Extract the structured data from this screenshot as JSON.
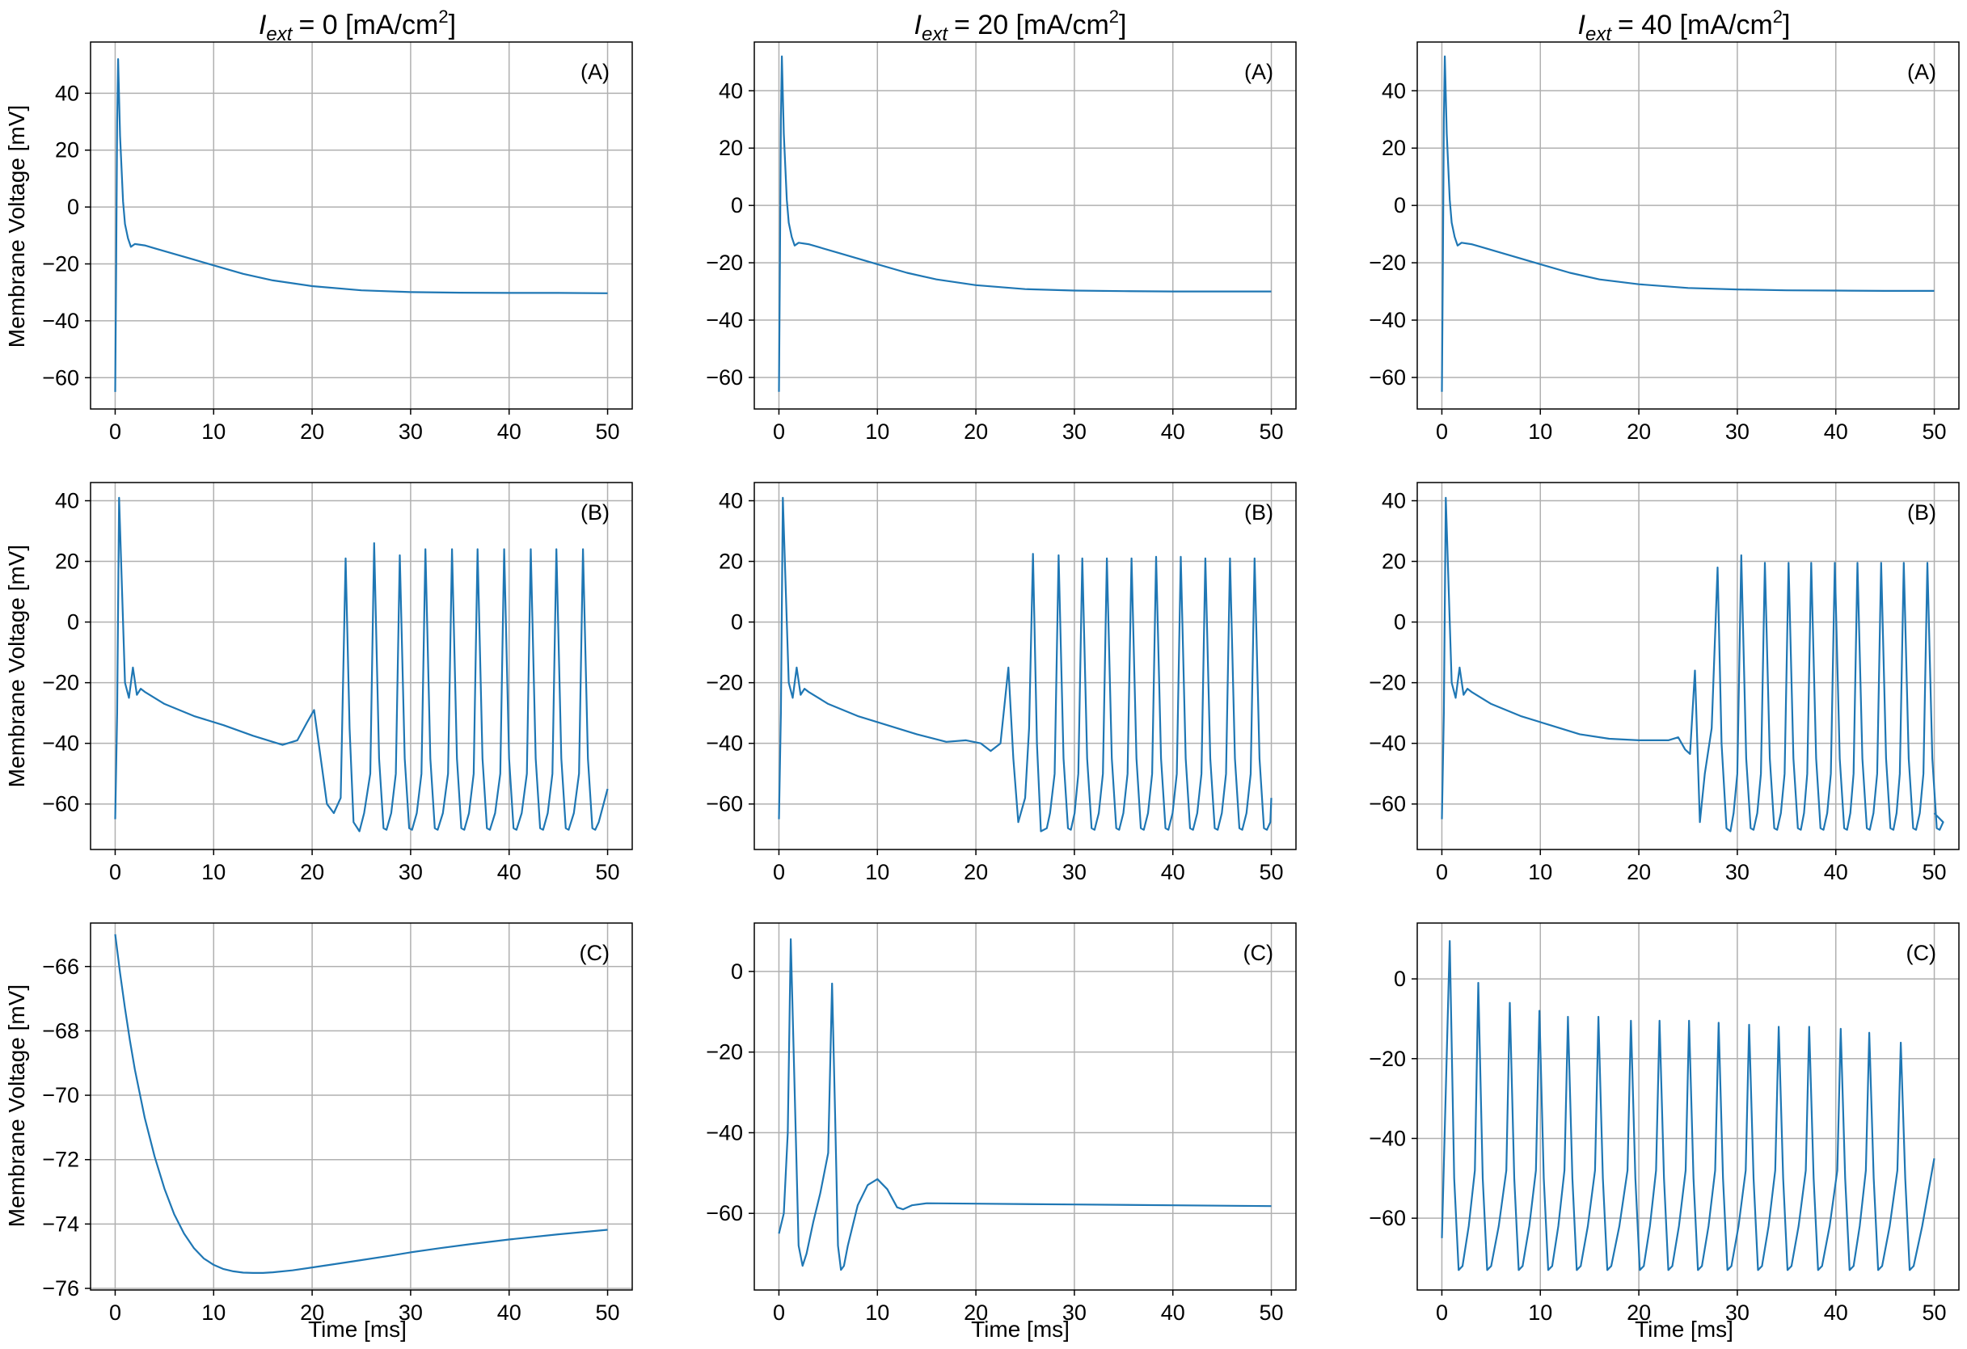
{
  "figure": {
    "columns": [
      {
        "title_symbol": "I",
        "title_sub": "ext",
        "title_value": "= 0 [mA/cm",
        "title_sup": "2",
        "title_tail": "]"
      },
      {
        "title_symbol": "I",
        "title_sub": "ext",
        "title_value": "= 20 [mA/cm",
        "title_sup": "2",
        "title_tail": "]"
      },
      {
        "title_symbol": "I",
        "title_sub": "ext",
        "title_value": "= 40 [mA/cm",
        "title_sup": "2",
        "title_tail": "]"
      }
    ],
    "ylabel": "Membrane Voltage [mV]",
    "xlabel": "Time [ms]",
    "colors": {
      "line": "#1f77b4",
      "grid": "#b0b0b0",
      "axes": "#000000"
    }
  },
  "chart_data": [
    {
      "type": "line",
      "row": 0,
      "col": 0,
      "tag": "(A)",
      "xlim": [
        -2.5,
        52.5
      ],
      "ylim": [
        -71,
        58
      ],
      "xticks": [
        0,
        10,
        20,
        30,
        40,
        50
      ],
      "yticks": [
        -60,
        -40,
        -20,
        0,
        20,
        40
      ],
      "x": [
        0,
        0.1,
        0.2,
        0.3,
        0.5,
        0.8,
        1,
        1.3,
        1.6,
        2,
        3,
        4,
        6,
        8,
        10,
        13,
        16,
        20,
        25,
        30,
        35,
        40,
        45,
        50
      ],
      "y": [
        -65,
        -20,
        30,
        52,
        25,
        2,
        -6,
        -11,
        -14,
        -13,
        -13.5,
        -14.5,
        -16.5,
        -18.5,
        -20.5,
        -23.5,
        -25.8,
        -27.8,
        -29.3,
        -29.9,
        -30.1,
        -30.2,
        -30.2,
        -30.3
      ]
    },
    {
      "type": "line",
      "row": 0,
      "col": 1,
      "tag": "(A)",
      "xlim": [
        -2.5,
        52.5
      ],
      "ylim": [
        -71,
        57
      ],
      "xticks": [
        0,
        10,
        20,
        30,
        40,
        50
      ],
      "yticks": [
        -60,
        -40,
        -20,
        0,
        20,
        40
      ],
      "x": [
        0,
        0.1,
        0.2,
        0.3,
        0.5,
        0.8,
        1,
        1.3,
        1.6,
        2,
        3,
        4,
        6,
        8,
        10,
        13,
        16,
        20,
        25,
        30,
        35,
        40,
        45,
        50
      ],
      "y": [
        -65,
        -20,
        30,
        52,
        25,
        2,
        -6,
        -11,
        -14,
        -13,
        -13.5,
        -14.5,
        -16.5,
        -18.5,
        -20.5,
        -23.5,
        -25.8,
        -27.8,
        -29.2,
        -29.7,
        -29.9,
        -30,
        -30,
        -30
      ]
    },
    {
      "type": "line",
      "row": 0,
      "col": 2,
      "tag": "(A)",
      "xlim": [
        -2.5,
        52.5
      ],
      "ylim": [
        -71,
        57
      ],
      "xticks": [
        0,
        10,
        20,
        30,
        40,
        50
      ],
      "yticks": [
        -60,
        -40,
        -20,
        0,
        20,
        40
      ],
      "x": [
        0,
        0.1,
        0.2,
        0.3,
        0.5,
        0.8,
        1,
        1.3,
        1.6,
        2,
        3,
        4,
        6,
        8,
        10,
        13,
        16,
        20,
        25,
        30,
        35,
        40,
        45,
        50
      ],
      "y": [
        -65,
        -20,
        30,
        52,
        25,
        2,
        -6,
        -11,
        -14,
        -13,
        -13.5,
        -14.5,
        -16.5,
        -18.5,
        -20.5,
        -23.5,
        -25.8,
        -27.5,
        -28.8,
        -29.3,
        -29.6,
        -29.7,
        -29.8,
        -29.8
      ]
    },
    {
      "type": "line",
      "row": 1,
      "col": 0,
      "tag": "(B)",
      "xlim": [
        -2.5,
        52.5
      ],
      "ylim": [
        -75,
        46
      ],
      "xticks": [
        0,
        10,
        20,
        30,
        40,
        50
      ],
      "yticks": [
        -60,
        -40,
        -20,
        0,
        20,
        40
      ],
      "spike_times": [
        23.4,
        26.3,
        28.9,
        31.5,
        34.2,
        36.8,
        39.5,
        42.2,
        44.8,
        47.5
      ],
      "spike_peaks": [
        21,
        26,
        22,
        24,
        24,
        24,
        24,
        24,
        24,
        24
      ],
      "x": [
        0,
        0.2,
        0.4,
        0.7,
        1,
        1.4,
        1.8,
        2.2,
        2.6,
        3,
        5,
        8,
        11,
        14,
        17,
        18.5,
        19.5,
        20.2,
        21,
        21.5,
        22.2,
        22.9,
        23.4,
        23.8,
        24.2,
        24.8,
        26.3,
        28.9,
        31.5,
        34.2,
        36.8,
        39.5,
        42.2,
        44.8,
        47.5,
        50
      ],
      "y": [
        -65,
        -30,
        41,
        10,
        -20,
        -25,
        -15,
        -24,
        -22,
        -23,
        -27,
        -31,
        -34,
        -37.5,
        -40.5,
        -39,
        -33,
        -29,
        -48,
        -60,
        -63,
        -58,
        21,
        -35,
        -66,
        -69,
        -71,
        -70,
        -70,
        -70,
        -70,
        -70,
        -70,
        -70,
        -70,
        -55
      ]
    },
    {
      "type": "line",
      "row": 1,
      "col": 1,
      "tag": "(B)",
      "xlim": [
        -2.5,
        52.5
      ],
      "ylim": [
        -75,
        46
      ],
      "xticks": [
        0,
        10,
        20,
        30,
        40,
        50
      ],
      "yticks": [
        -60,
        -40,
        -20,
        0,
        20,
        40
      ],
      "spike_times": [
        25.8,
        28.4,
        30.8,
        33.3,
        35.8,
        38.3,
        40.8,
        43.3,
        45.8,
        48.3
      ],
      "spike_peaks": [
        22.5,
        22,
        21,
        21,
        21,
        21.5,
        21.5,
        21,
        21,
        21
      ],
      "x": [
        0,
        0.2,
        0.4,
        0.7,
        1,
        1.4,
        1.8,
        2.2,
        2.6,
        3,
        5,
        8,
        11,
        14,
        17,
        19,
        20.5,
        21.5,
        22.5,
        23.3,
        23.8,
        24.3,
        25,
        25.4,
        25.8,
        26.2,
        26.6,
        27.2,
        28.4,
        30.8,
        33.3,
        35.8,
        38.3,
        40.8,
        43.3,
        45.8,
        48.3,
        50
      ],
      "y": [
        -65,
        -30,
        41,
        10,
        -20,
        -25,
        -15,
        -24,
        -22,
        -23,
        -27,
        -31,
        -34,
        -37,
        -39.5,
        -39,
        -40,
        -42.5,
        -40,
        -15,
        -45,
        -66,
        -58,
        -35,
        22.5,
        -40,
        -69,
        -68,
        -70,
        -70,
        -70,
        -70,
        -70,
        -70,
        -70,
        -70,
        -70,
        -58
      ]
    },
    {
      "type": "line",
      "row": 1,
      "col": 2,
      "tag": "(B)",
      "xlim": [
        -2.5,
        52.5
      ],
      "ylim": [
        -75,
        46
      ],
      "xticks": [
        0,
        10,
        20,
        30,
        40,
        50
      ],
      "yticks": [
        -60,
        -40,
        -20,
        0,
        20,
        40
      ],
      "spike_times": [
        28,
        30.4,
        32.8,
        35.2,
        37.5,
        39.9,
        42.2,
        44.6,
        46.9,
        49.3
      ],
      "spike_peaks": [
        18,
        22,
        19.5,
        19.5,
        19.5,
        19.5,
        19.5,
        19.5,
        19.5,
        19.5
      ],
      "x": [
        0,
        0.2,
        0.4,
        0.7,
        1,
        1.4,
        1.8,
        2.2,
        2.6,
        3,
        5,
        8,
        11,
        14,
        17,
        20,
        23,
        24,
        24.7,
        25.2,
        25.7,
        26.2,
        26.7,
        27.4,
        28,
        28.4,
        28.9,
        29.3,
        30.4,
        32.8,
        35.2,
        37.5,
        39.9,
        42.2,
        44.6,
        46.9,
        49.3,
        50
      ],
      "y": [
        -65,
        -30,
        41,
        10,
        -20,
        -25,
        -15,
        -24,
        -22,
        -23,
        -27,
        -31,
        -34,
        -37,
        -38.5,
        -39,
        -39,
        -38,
        -42,
        -43.5,
        -16,
        -66,
        -50,
        -35,
        18,
        -40,
        -68,
        -69,
        -70,
        -70,
        -70,
        -70,
        -70,
        -70,
        -70,
        -70,
        -70,
        -63
      ]
    },
    {
      "type": "line",
      "row": 2,
      "col": 0,
      "tag": "(C)",
      "xlim": [
        -2.5,
        52.5
      ],
      "ylim": [
        -76.05,
        -64.65
      ],
      "xticks": [
        0,
        10,
        20,
        30,
        40,
        50
      ],
      "yticks": [
        -76,
        -74,
        -72,
        -70,
        -68,
        -66
      ],
      "x": [
        0,
        0.5,
        1,
        1.5,
        2,
        3,
        4,
        5,
        6,
        7,
        8,
        9,
        10,
        11,
        12,
        13,
        14,
        15,
        16,
        18,
        20,
        22,
        25,
        28,
        30,
        33,
        36,
        40,
        45,
        50
      ],
      "y": [
        -65,
        -66.2,
        -67.3,
        -68.3,
        -69.2,
        -70.7,
        -71.9,
        -72.9,
        -73.7,
        -74.3,
        -74.75,
        -75.07,
        -75.27,
        -75.4,
        -75.47,
        -75.51,
        -75.52,
        -75.52,
        -75.5,
        -75.44,
        -75.35,
        -75.26,
        -75.12,
        -74.98,
        -74.88,
        -74.75,
        -74.63,
        -74.48,
        -74.32,
        -74.18
      ]
    },
    {
      "type": "line",
      "row": 2,
      "col": 1,
      "tag": "(C)",
      "xlim": [
        -2.5,
        52.5
      ],
      "ylim": [
        -79,
        12
      ],
      "xticks": [
        0,
        10,
        20,
        30,
        40,
        50
      ],
      "yticks": [
        -60,
        -40,
        -20,
        0
      ],
      "x": [
        0,
        0.5,
        0.9,
        1.2,
        1.5,
        2,
        2.4,
        2.8,
        3.5,
        4.2,
        5,
        5.4,
        5.7,
        6,
        6.3,
        6.6,
        7,
        8,
        9,
        10,
        11,
        12,
        12.6,
        13.5,
        15,
        20,
        30,
        40,
        50
      ],
      "y": [
        -65,
        -60,
        -40,
        8,
        -20,
        -68,
        -73,
        -70,
        -62,
        -55,
        -45,
        -3,
        -35,
        -68,
        -74,
        -73,
        -68,
        -58,
        -53,
        -51.5,
        -54,
        -58.5,
        -59,
        -58,
        -57.5,
        -57.6,
        -57.8,
        -58,
        -58.2
      ]
    },
    {
      "type": "line",
      "row": 2,
      "col": 2,
      "tag": "(C)",
      "xlim": [
        -2.5,
        52.5
      ],
      "ylim": [
        -78,
        14
      ],
      "xticks": [
        0,
        10,
        20,
        30,
        40,
        50
      ],
      "yticks": [
        -60,
        -40,
        -20,
        0
      ],
      "spike_times": [
        0.8,
        3.7,
        6.9,
        9.9,
        12.8,
        15.9,
        19.2,
        22.1,
        25.1,
        28.1,
        31.2,
        34.2,
        37.3,
        40.5,
        43.4,
        46.6
      ],
      "spike_peaks": [
        9.5,
        -1,
        -6,
        -8,
        -9.5,
        -9.5,
        -10.5,
        -10.5,
        -10.5,
        -11,
        -11.5,
        -12,
        -12,
        -12.5,
        -13.5,
        -16
      ],
      "trough": -73,
      "pre_spike": -48,
      "x_end": 50,
      "y_end": -45
    }
  ]
}
